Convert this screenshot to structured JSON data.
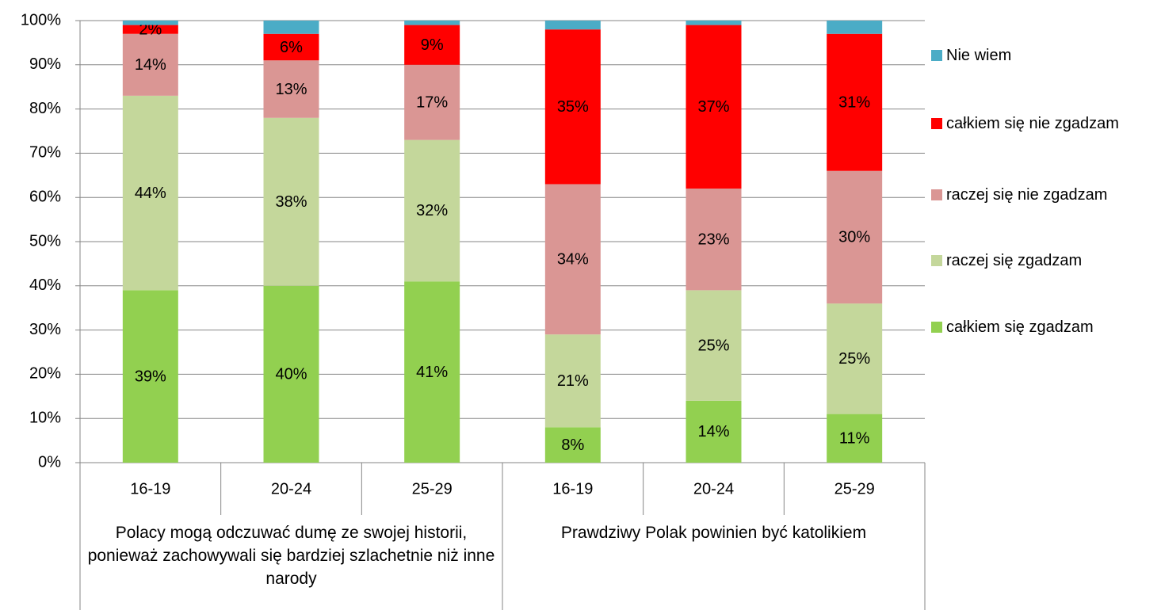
{
  "chart_data": {
    "type": "stacked_bar",
    "categories": [
      "16-19",
      "20-24",
      "25-29",
      "16-19",
      "20-24",
      "25-29"
    ],
    "groups": [
      "Polacy mogą odczuwać dumę ze swojej historii, ponieważ zachowywali się bardziej szlachetnie niż inne narody",
      "Prawdziwy Polak powinien być katolikiem"
    ],
    "series": [
      {
        "name": "całkiem się zgadzam",
        "color": "#92d050",
        "values": [
          39,
          40,
          41,
          8,
          14,
          11
        ],
        "value_labels": [
          "39%",
          "40%",
          "41%",
          "8%",
          "14%",
          "11%"
        ]
      },
      {
        "name": "raczej się zgadzam",
        "color": "#c4d79b",
        "values": [
          44,
          38,
          32,
          21,
          25,
          25
        ],
        "value_labels": [
          "44%",
          "38%",
          "32%",
          "21%",
          "25%",
          "25%"
        ]
      },
      {
        "name": "raczej się nie zgadzam",
        "color": "#da9694",
        "values": [
          14,
          13,
          17,
          34,
          23,
          30
        ],
        "value_labels": [
          "14%",
          "13%",
          "17%",
          "34%",
          "23%",
          "30%"
        ]
      },
      {
        "name": "całkiem się nie zgadzam",
        "color": "#ff0000",
        "values": [
          2,
          6,
          9,
          35,
          37,
          31
        ],
        "value_labels": [
          "2%",
          "6%",
          "9%",
          "35%",
          "37%",
          "31%"
        ]
      },
      {
        "name": "Nie wiem",
        "color": "#4bacc6",
        "values": [
          1,
          3,
          1,
          2,
          1,
          3
        ]
      }
    ],
    "ylim": [
      0,
      100
    ],
    "yticks": [
      {
        "value": 0,
        "label": "0%"
      },
      {
        "value": 10,
        "label": "10%"
      },
      {
        "value": 20,
        "label": "20%"
      },
      {
        "value": 30,
        "label": "30%"
      },
      {
        "value": 40,
        "label": "40%"
      },
      {
        "value": 50,
        "label": "50%"
      },
      {
        "value": 60,
        "label": "60%"
      },
      {
        "value": 70,
        "label": "70%"
      },
      {
        "value": 80,
        "label": "80%"
      },
      {
        "value": 90,
        "label": "90%"
      },
      {
        "value": 100,
        "label": "100%"
      }
    ],
    "grid": true,
    "legend": "right"
  }
}
